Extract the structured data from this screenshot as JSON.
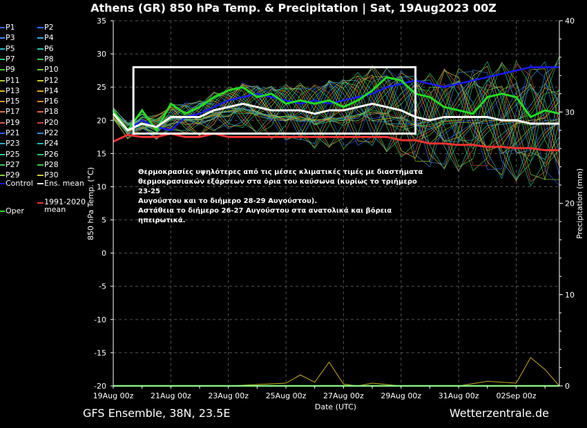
{
  "header": {
    "title": "Athens  (GR)  850 hPa Temp. & Precipitation | Sat, 19Aug2023 00Z"
  },
  "footer": {
    "left": "GFS Ensemble, 38N, 23.5E",
    "right": "Wetterzentrale.de"
  },
  "annotation": {
    "lines": [
      "Θερμοκρασίες υψηλότερες από τις μέσες κλιματικές τιμές με διαστήματα",
      "θερμοκρασιακών εξάρσεων στα όρια του καύσωνα (κυρίως το τριήμερο 23-25",
      "Αυγούστου και το διήμερο 28-29 Αυγούστου).",
      "Αστάθεια το διήμερο 26-27 Αυγούστου στα ανατολικά και βόρεια ηπειρωτικά."
    ]
  },
  "colors": {
    "background": "#000000",
    "grid": "#555555",
    "control": "#1a1aff",
    "oper": "#22dd22",
    "ens_mean": "#ffffff",
    "climate_mean": "#ee3333",
    "highlight_box": "#ffffff"
  },
  "chart_data": {
    "type": "line",
    "xlabel": "Date (UTC)",
    "ylabel": "850 hPa Temp. (°C)",
    "y2label": "Precipitation (mm)",
    "x_ticks": [
      "19Aug 00z",
      "21Aug 00z",
      "23Aug 00z",
      "25Aug 00z",
      "27Aug 00z",
      "29Aug 00z",
      "31Aug 00z",
      "02Sep 00z"
    ],
    "x_range_days": [
      0,
      15.5
    ],
    "ylim": [
      -20,
      35
    ],
    "y_ticks": [
      35,
      30,
      25,
      20,
      15,
      10,
      5,
      0,
      -5,
      -10,
      -15,
      -20
    ],
    "y2lim": [
      0,
      40
    ],
    "y2_ticks": [
      40,
      30,
      20,
      10,
      0
    ],
    "grid": true,
    "legend_position": "left",
    "legend": [
      {
        "label": "P1",
        "color": "#3366ff"
      },
      {
        "label": "P2",
        "color": "#3377ff"
      },
      {
        "label": "P3",
        "color": "#4488ee"
      },
      {
        "label": "P4",
        "color": "#33aadd"
      },
      {
        "label": "P5",
        "color": "#22bbcc"
      },
      {
        "label": "P6",
        "color": "#22ccaa"
      },
      {
        "label": "P7",
        "color": "#22cc88"
      },
      {
        "label": "P8",
        "color": "#33cc55"
      },
      {
        "label": "P9",
        "color": "#44cc33"
      },
      {
        "label": "P10",
        "color": "#77cc22"
      },
      {
        "label": "P11",
        "color": "#aacc22"
      },
      {
        "label": "P12",
        "color": "#cccc22"
      },
      {
        "label": "P13",
        "color": "#ddbb22"
      },
      {
        "label": "P14",
        "color": "#ddaa22"
      },
      {
        "label": "P15",
        "color": "#dd9922"
      },
      {
        "label": "P16",
        "color": "#dd8833"
      },
      {
        "label": "P17",
        "color": "#dd7744"
      },
      {
        "label": "P18",
        "color": "#dd6644"
      },
      {
        "label": "P19",
        "color": "#dd5555"
      },
      {
        "label": "P20",
        "color": "#cc4444"
      },
      {
        "label": "P21",
        "color": "#3355ee"
      },
      {
        "label": "P22",
        "color": "#3388dd"
      },
      {
        "label": "P23",
        "color": "#33aacc"
      },
      {
        "label": "P24",
        "color": "#22bbbb"
      },
      {
        "label": "P25",
        "color": "#22cc99"
      },
      {
        "label": "P26",
        "color": "#22cc77"
      },
      {
        "label": "P27",
        "color": "#33cc66"
      },
      {
        "label": "P28",
        "color": "#44cc44"
      },
      {
        "label": "P29",
        "color": "#88cc33"
      },
      {
        "label": "P30",
        "color": "#cccc33"
      },
      {
        "label": "Control",
        "color": "#1a1aff"
      },
      {
        "label": "Ens. mean",
        "color": "#ffffff"
      },
      {
        "label": "1991-2020 mean",
        "color": "#ee3333"
      },
      {
        "label": "Oper",
        "color": "#22dd22"
      }
    ],
    "highlight_box": {
      "x_days": [
        0.7,
        10.5
      ],
      "y": [
        18,
        28
      ]
    },
    "series": [
      {
        "name": "Control",
        "style": "control",
        "x": [
          0,
          0.5,
          1,
          1.5,
          2,
          2.5,
          3,
          3.5,
          4,
          4.5,
          5,
          5.5,
          6,
          6.5,
          7,
          7.5,
          8,
          8.5,
          9,
          9.5,
          10,
          10.5,
          11,
          11.5,
          12,
          12.5,
          13,
          13.5,
          14,
          14.5,
          15,
          15.5
        ],
        "y": [
          21,
          18.5,
          20,
          19,
          18.5,
          20.5,
          21,
          22,
          23,
          23.5,
          24,
          23.5,
          23,
          22.5,
          23,
          22.5,
          23,
          23.5,
          24,
          25,
          25.5,
          26,
          25.5,
          25,
          25.5,
          26,
          26.5,
          27,
          27.5,
          28,
          28,
          28
        ]
      },
      {
        "name": "Oper",
        "style": "oper",
        "x": [
          0,
          0.5,
          1,
          1.5,
          2,
          2.5,
          3,
          3.5,
          4,
          4.5,
          5,
          5.5,
          6,
          6.5,
          7,
          7.5,
          8,
          8.5,
          9,
          9.5,
          10,
          10.5,
          11,
          11.5,
          12,
          12.5,
          13,
          13.5,
          14,
          14.5,
          15,
          15.5
        ],
        "y": [
          21.5,
          18.5,
          21.5,
          18.5,
          22.5,
          21,
          22,
          23.5,
          24.5,
          25,
          23.5,
          24,
          22.5,
          23,
          22.5,
          23,
          22,
          23,
          24.5,
          26.5,
          26,
          24,
          23.5,
          22,
          21.5,
          21,
          23.5,
          24,
          23.5,
          20.5,
          21.5,
          21
        ]
      },
      {
        "name": "Ens. mean",
        "style": "mean",
        "x": [
          0,
          0.5,
          1,
          1.5,
          2,
          2.5,
          3,
          3.5,
          4,
          4.5,
          5,
          5.5,
          6,
          6.5,
          7,
          7.5,
          8,
          8.5,
          9,
          9.5,
          10,
          10.5,
          11,
          11.5,
          12,
          12.5,
          13,
          13.5,
          14,
          14.5,
          15,
          15.5
        ],
        "y": [
          21,
          18.5,
          19.5,
          19,
          20.5,
          20.5,
          20.5,
          21.5,
          22,
          22.5,
          22,
          21.5,
          21.5,
          21.5,
          21,
          21.5,
          21.5,
          22,
          22.5,
          22,
          21.5,
          20.5,
          20,
          20.5,
          20.5,
          20.5,
          20.5,
          20,
          20,
          19.5,
          19.5,
          19.5
        ]
      },
      {
        "name": "1991-2020 mean",
        "style": "climate",
        "x": [
          0,
          0.5,
          1,
          1.5,
          2,
          2.5,
          3,
          3.5,
          4,
          4.5,
          5,
          5.5,
          6,
          6.5,
          7,
          7.5,
          8,
          8.5,
          9,
          9.5,
          10,
          10.5,
          11,
          11.5,
          12,
          12.5,
          13,
          13.5,
          14,
          14.5,
          15,
          15.5
        ],
        "y": [
          16.8,
          17.8,
          17.5,
          17.5,
          18,
          17.5,
          17.5,
          18,
          17.5,
          17.5,
          17.5,
          17.5,
          17.5,
          17.5,
          17.5,
          17.5,
          17.5,
          17.5,
          17.5,
          17.5,
          17,
          17,
          16.5,
          16.5,
          16.3,
          16.3,
          16,
          16,
          15.8,
          15.8,
          15.5,
          15.5
        ]
      }
    ],
    "precipitation": {
      "x": [
        0,
        2,
        4,
        6,
        6.5,
        7,
        7.5,
        8,
        8.5,
        9,
        10,
        12,
        13,
        14,
        14.5,
        15,
        15.5
      ],
      "y": [
        0,
        0,
        0,
        0.3,
        1.2,
        0.4,
        2.6,
        0.2,
        0,
        0.3,
        0,
        0,
        0.5,
        0.3,
        3.1,
        1.8,
        0
      ]
    }
  }
}
